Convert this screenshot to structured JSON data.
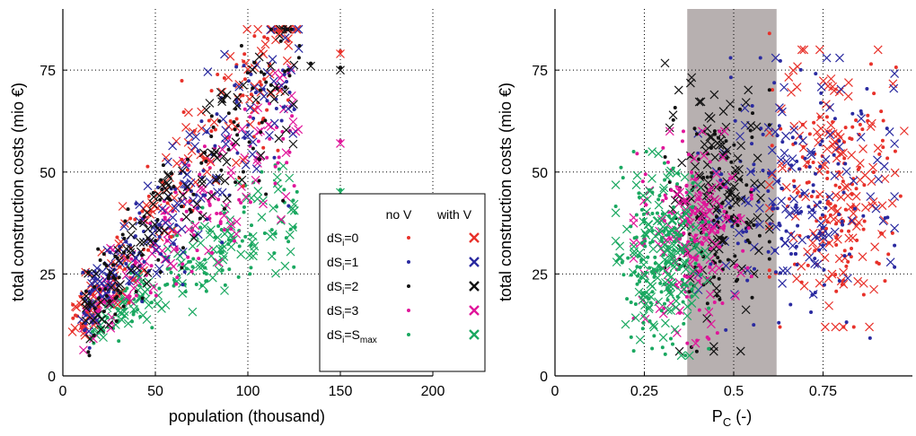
{
  "colors": {
    "dS0": "#e8312a",
    "dS1": "#2a2aa0",
    "dS2": "#111111",
    "dS3": "#e0159a",
    "dSmax": "#1aa860",
    "band": "#b7b0b0"
  },
  "legend": {
    "header_no_v": "no V",
    "header_with_v": "with V",
    "entries": [
      {
        "base": "dS",
        "sub": "i",
        "rest": "=0",
        "key": "dS0"
      },
      {
        "base": "dS",
        "sub": "i",
        "rest": "=1",
        "key": "dS1"
      },
      {
        "base": "dS",
        "sub": "i",
        "rest": "=2",
        "key": "dS2"
      },
      {
        "base": "dS",
        "sub": "i",
        "rest": "=3",
        "key": "dS3"
      },
      {
        "base": "dS",
        "sub": "i",
        "rest": "=S",
        "sub2": "max",
        "key": "dSmax"
      }
    ],
    "placement": "lower-right of left panel"
  },
  "chart_data": [
    {
      "type": "scatter",
      "title": "",
      "xlabel": "population (thousand)",
      "ylabel": "total construction costs (mio €)",
      "xlim": [
        0,
        200
      ],
      "ylim": [
        0,
        90
      ],
      "xticks": [
        0,
        50,
        100,
        150,
        200
      ],
      "yticks": [
        0,
        25,
        50,
        75
      ],
      "grid": true,
      "markers": {
        "no_v": "dot",
        "with_v": "cross"
      },
      "series": [
        {
          "name": "dS_i=0",
          "key": "dS0",
          "x_range": [
            5,
            150
          ],
          "y_center": "rising",
          "slope": 0.62,
          "intercept": 9,
          "spread": 9,
          "count": 220
        },
        {
          "name": "dS_i=1",
          "key": "dS1",
          "x_range": [
            10,
            130
          ],
          "slope": 0.55,
          "intercept": 10,
          "spread": 9,
          "count": 220
        },
        {
          "name": "dS_i=2",
          "key": "dS2",
          "x_range": [
            12,
            150
          ],
          "slope": 0.55,
          "intercept": 9,
          "spread": 9,
          "count": 220
        },
        {
          "name": "dS_i=3",
          "key": "dS3",
          "x_range": [
            10,
            150
          ],
          "slope": 0.42,
          "intercept": 9,
          "spread": 7,
          "count": 220
        },
        {
          "name": "dS_i=S_max",
          "key": "dSmax",
          "x_range": [
            15,
            150
          ],
          "slope": 0.28,
          "intercept": 8,
          "spread": 5,
          "count": 260
        }
      ],
      "annotations": [
        {
          "x": 150,
          "y": 75,
          "series": "dS2"
        },
        {
          "x": 150,
          "y": 57,
          "series": "dS3"
        },
        {
          "x": 150,
          "y": 45,
          "series": "dSmax"
        },
        {
          "x": 150,
          "y": 79,
          "series": "dS0"
        },
        {
          "x": 117,
          "y": 84,
          "series": "dS0"
        },
        {
          "x": 134,
          "y": 76,
          "series": "dS2"
        }
      ]
    },
    {
      "type": "scatter",
      "title": "",
      "xlabel": "P_C (-)",
      "xlabel_base": "P",
      "xlabel_sub": "C",
      "xlabel_rest": " (-)",
      "ylabel": "total construction costs (mio €)",
      "xlim": [
        0,
        1
      ],
      "ylim": [
        0,
        90
      ],
      "xticks": [
        0,
        0.25,
        0.5,
        0.75
      ],
      "xticklabels": [
        "0",
        "0.25",
        "0.5",
        "0.75"
      ],
      "yticks": [
        0,
        25,
        50,
        75
      ],
      "grid": true,
      "shaded_band": {
        "x_from": 0.37,
        "x_to": 0.62
      },
      "series": [
        {
          "name": "dS_i=0",
          "key": "dS0",
          "x_range": [
            0.6,
            0.98
          ],
          "y_range": [
            12,
            80
          ],
          "count": 260
        },
        {
          "name": "dS_i=1",
          "key": "dS1",
          "x_range": [
            0.4,
            0.95
          ],
          "y_range": [
            8,
            78
          ],
          "count": 240
        },
        {
          "name": "dS_i=2",
          "key": "dS2",
          "x_range": [
            0.3,
            0.6
          ],
          "y_range": [
            6,
            78
          ],
          "count": 220
        },
        {
          "name": "dS_i=3",
          "key": "dS3",
          "x_range": [
            0.22,
            0.55
          ],
          "y_range": [
            8,
            60
          ],
          "count": 220
        },
        {
          "name": "dS_i=S_max",
          "key": "dSmax",
          "x_range": [
            0.17,
            0.43
          ],
          "y_range": [
            5,
            55
          ],
          "count": 280
        }
      ],
      "annotations": [
        {
          "x": 0.6,
          "y": 84,
          "series": "dS0"
        }
      ]
    }
  ],
  "axes_text": {
    "left_ylabel": "total construction costs (mio €)",
    "left_xlabel": "population (thousand)",
    "right_ylabel": "total construction costs (mio €)",
    "right_xlabel_base": "P",
    "right_xlabel_sub": "C",
    "right_xlabel_rest": " (-)"
  }
}
